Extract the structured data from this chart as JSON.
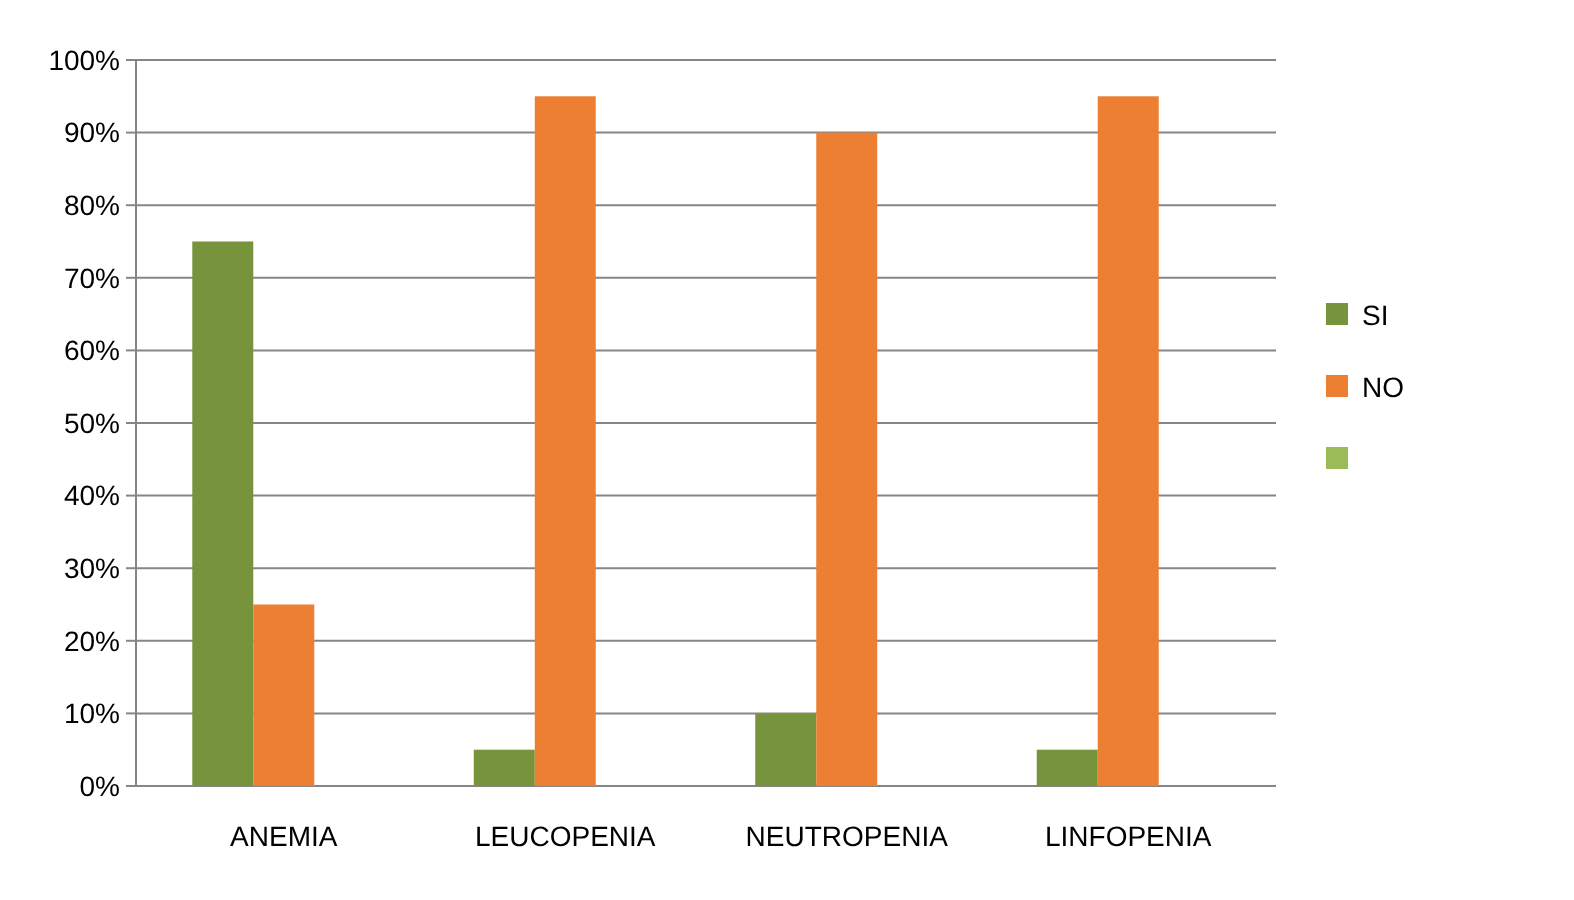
{
  "chart_data": {
    "type": "bar",
    "categories": [
      "ANEMIA",
      "LEUCOPENIA",
      "NEUTROPENIA",
      "LINFOPENIA"
    ],
    "series": [
      {
        "name": "SI",
        "color": "#77933c",
        "values": [
          75,
          5,
          10,
          5
        ]
      },
      {
        "name": "NO",
        "color": "#ec7f31",
        "values": [
          25,
          95,
          90,
          95
        ]
      },
      {
        "color": "#9bbb59",
        "values": [
          null,
          null,
          null,
          null
        ]
      }
    ],
    "ylim": [
      0,
      100
    ],
    "yticks": [
      {
        "value": 0,
        "label": "0%"
      },
      {
        "value": 10,
        "label": "10%"
      },
      {
        "value": 20,
        "label": "20%"
      },
      {
        "value": 30,
        "label": "30%"
      },
      {
        "value": 40,
        "label": "40%"
      },
      {
        "value": 50,
        "label": "50%"
      },
      {
        "value": 60,
        "label": "60%"
      },
      {
        "value": 70,
        "label": "70%"
      },
      {
        "value": 80,
        "label": "80%"
      },
      {
        "value": 90,
        "label": "90%"
      },
      {
        "value": 100,
        "label": "100%"
      }
    ],
    "grid": "y",
    "legend": "right"
  }
}
